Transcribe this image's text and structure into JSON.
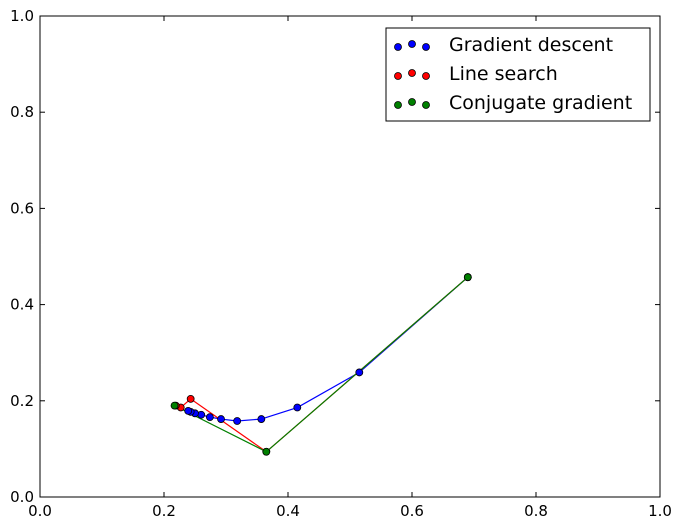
{
  "chart_data": {
    "type": "line",
    "title": "",
    "xlabel": "",
    "ylabel": "",
    "xlim": [
      0.0,
      1.0
    ],
    "ylim": [
      0.0,
      1.0
    ],
    "xticks": [
      "0.0",
      "0.2",
      "0.4",
      "0.6",
      "0.8",
      "1.0"
    ],
    "yticks": [
      "0.0",
      "0.2",
      "0.4",
      "0.6",
      "0.8",
      "1.0"
    ],
    "grid": false,
    "legend_position": "top-right",
    "series": [
      {
        "name": "Gradient descent",
        "color": "#0000ff",
        "marker_color": "#0000ff",
        "points": [
          [
            0.69,
            0.457
          ],
          [
            0.515,
            0.259
          ],
          [
            0.415,
            0.186
          ],
          [
            0.357,
            0.162
          ],
          [
            0.318,
            0.158
          ],
          [
            0.292,
            0.162
          ],
          [
            0.274,
            0.166
          ],
          [
            0.26,
            0.171
          ],
          [
            0.25,
            0.174
          ],
          [
            0.243,
            0.177
          ],
          [
            0.239,
            0.179
          ]
        ]
      },
      {
        "name": "Line search",
        "color": "#ff0000",
        "marker_color": "#ff0000",
        "points": [
          [
            0.69,
            0.457
          ],
          [
            0.365,
            0.094
          ],
          [
            0.243,
            0.204
          ],
          [
            0.227,
            0.186
          ],
          [
            0.219,
            0.19
          ]
        ]
      },
      {
        "name": "Conjugate gradient",
        "color": "#008000",
        "marker_color": "#008000",
        "points": [
          [
            0.69,
            0.457
          ],
          [
            0.365,
            0.094
          ],
          [
            0.217,
            0.19
          ]
        ]
      }
    ]
  }
}
